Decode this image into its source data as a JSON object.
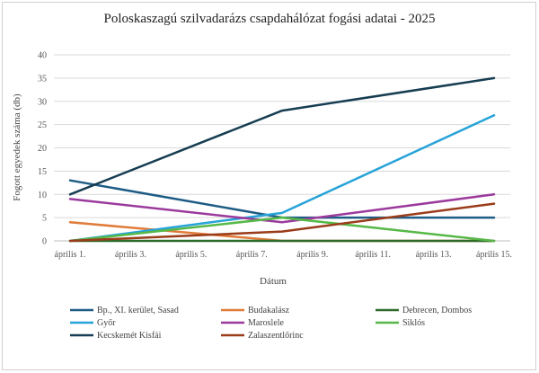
{
  "chart_data": {
    "type": "line",
    "title": "Poloskaszagú szilvadarázs csapdahálózat fogási adatai - 2025",
    "xlabel": "Dátum",
    "ylabel": "Fogott egyedek száma (db)",
    "ylim": [
      0,
      40
    ],
    "yticks": [
      0,
      5,
      10,
      15,
      20,
      25,
      30,
      35,
      40
    ],
    "x_ticks": [
      "április 1.",
      "április 3.",
      "április 5.",
      "április 7.",
      "április 9.",
      "április 11.",
      "április 13.",
      "április 15."
    ],
    "xlim_days": [
      1,
      15
    ],
    "grid": true,
    "legend_position": "bottom",
    "series": [
      {
        "name": "Bp., XI. kerület, Sasad",
        "color": "#1f5c85",
        "x": [
          1,
          8,
          15
        ],
        "values": [
          13,
          5,
          5
        ]
      },
      {
        "name": "Budakalász",
        "color": "#e07b39",
        "x": [
          1,
          8,
          15
        ],
        "values": [
          4,
          0,
          0
        ]
      },
      {
        "name": "Debrecen, Dombos",
        "color": "#2e6b2a",
        "x": [
          1,
          8,
          15
        ],
        "values": [
          0,
          0,
          0
        ]
      },
      {
        "name": "Győr",
        "color": "#27a3d8",
        "x": [
          1,
          8,
          15
        ],
        "values": [
          0,
          6,
          27
        ]
      },
      {
        "name": "Maroslele",
        "color": "#9b3a9c",
        "x": [
          1,
          8,
          15
        ],
        "values": [
          9,
          4,
          10
        ]
      },
      {
        "name": "Siklós",
        "color": "#56b847",
        "x": [
          1,
          8,
          15
        ],
        "values": [
          0,
          5,
          0
        ]
      },
      {
        "name": "Kecskemét Kisfái",
        "color": "#163d52",
        "x": [
          1,
          8,
          15
        ],
        "values": [
          10,
          28,
          35
        ]
      },
      {
        "name": "Zalaszentlőrinc",
        "color": "#9a3c1a",
        "x": [
          1,
          8,
          15
        ],
        "values": [
          0,
          2,
          8
        ]
      }
    ]
  }
}
